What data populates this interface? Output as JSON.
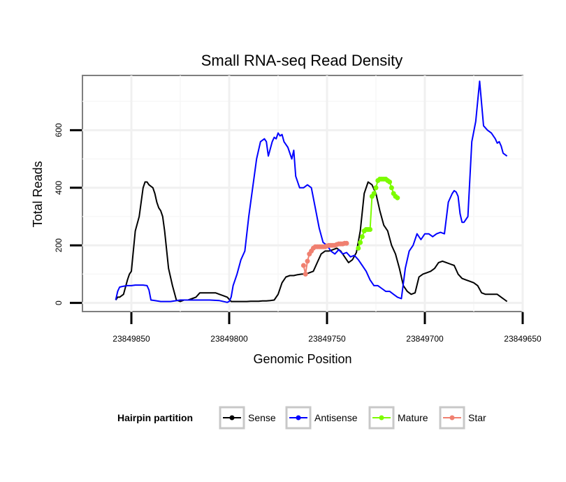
{
  "chart_data": {
    "type": "line",
    "title": "Small RNA-seq Read Density",
    "xlabel": "Genomic Position",
    "ylabel": "Total Reads",
    "xlim": [
      23849875,
      23849650
    ],
    "ylim": [
      -30,
      790
    ],
    "x_reversed": true,
    "grid": true,
    "x_ticks": [
      23849850,
      23849800,
      23849750,
      23849700,
      23849650
    ],
    "x_tick_labels": [
      "23849850",
      "23849800",
      "23849750",
      "23849700",
      "23849650"
    ],
    "y_ticks": [
      0,
      200,
      400,
      600
    ],
    "y_tick_labels": [
      "0",
      "200",
      "400",
      "600"
    ],
    "legend": {
      "title": "Hairpin partition",
      "position": "bottom",
      "entries": [
        {
          "label": "Sense",
          "color": "#000000"
        },
        {
          "label": "Antisense",
          "color": "#0000ff"
        },
        {
          "label": "Mature",
          "color": "#7cfc00"
        },
        {
          "label": "Star",
          "color": "#f08070"
        }
      ]
    },
    "series": [
      {
        "name": "Sense",
        "color": "#000000",
        "markers": false,
        "x": [
          23849858,
          23849857,
          23849856,
          23849854,
          23849852,
          23849851,
          23849850,
          23849848,
          23849846,
          23849845,
          23849844,
          23849843,
          23849842,
          23849841,
          23849840,
          23849839,
          23849838,
          23849837,
          23849836,
          23849835,
          23849834,
          23849833,
          23849831,
          23849829,
          23849827,
          23849825,
          23849823,
          23849821,
          23849819,
          23849817,
          23849815,
          23849813,
          23849811,
          23849809,
          23849807,
          23849805,
          23849803,
          23849801,
          23849799,
          23849797,
          23849795,
          23849793,
          23849791,
          23849789,
          23849787,
          23849785,
          23849783,
          23849781,
          23849779,
          23849777,
          23849775,
          23849773,
          23849771,
          23849769,
          23849767,
          23849765,
          23849763,
          23849761,
          23849759,
          23849757,
          23849755,
          23849753,
          23849751,
          23849749,
          23849747,
          23849745,
          23849743,
          23849741,
          23849739,
          23849737,
          23849735,
          23849733,
          23849731,
          23849729,
          23849727,
          23849725,
          23849723,
          23849721,
          23849719,
          23849717,
          23849715,
          23849713,
          23849711,
          23849709,
          23849707,
          23849705,
          23849703,
          23849701,
          23849699,
          23849697,
          23849695,
          23849693,
          23849691,
          23849689,
          23849687,
          23849685,
          23849683,
          23849681,
          23849679,
          23849677,
          23849675,
          23849673,
          23849671,
          23849669,
          23849667,
          23849665,
          23849663,
          23849661,
          23849659,
          23849658
        ],
        "y": [
          10,
          20,
          20,
          30,
          80,
          100,
          110,
          250,
          300,
          350,
          400,
          420,
          420,
          410,
          405,
          400,
          380,
          350,
          330,
          320,
          300,
          250,
          120,
          60,
          10,
          5,
          10,
          10,
          15,
          20,
          35,
          35,
          35,
          35,
          35,
          30,
          25,
          20,
          5,
          5,
          5,
          5,
          5,
          6,
          6,
          6,
          7,
          7,
          8,
          10,
          30,
          70,
          90,
          95,
          95,
          98,
          100,
          100,
          105,
          110,
          140,
          170,
          180,
          180,
          185,
          190,
          180,
          160,
          140,
          150,
          175,
          250,
          380,
          420,
          410,
          380,
          320,
          270,
          250,
          200,
          170,
          120,
          60,
          40,
          30,
          35,
          90,
          100,
          105,
          110,
          120,
          140,
          145,
          140,
          135,
          130,
          100,
          85,
          80,
          75,
          70,
          60,
          35,
          30,
          30,
          30,
          30,
          20,
          10,
          5
        ]
      },
      {
        "name": "Antisense",
        "color": "#0000ff",
        "markers": false,
        "x": [
          23849858,
          23849857,
          23849856,
          23849854,
          23849852,
          23849850,
          23849848,
          23849846,
          23849844,
          23849842,
          23849841,
          23849840,
          23849838,
          23849835,
          23849830,
          23849825,
          23849820,
          23849815,
          23849810,
          23849805,
          23849801,
          23849800,
          23849799,
          23849798,
          23849796,
          23849794,
          23849792,
          23849790,
          23849788,
          23849786,
          23849784,
          23849782,
          23849781,
          23849780,
          23849778,
          23849777,
          23849776,
          23849775,
          23849774,
          23849773,
          23849772,
          23849770,
          23849768,
          23849767,
          23849766,
          23849764,
          23849762,
          23849760,
          23849758,
          23849756,
          23849754,
          23849752,
          23849750,
          23849748,
          23849746,
          23849744,
          23849742,
          23849740,
          23849738,
          23849736,
          23849734,
          23849732,
          23849730,
          23849728,
          23849726,
          23849724,
          23849722,
          23849720,
          23849718,
          23849716,
          23849714,
          23849712,
          23849710,
          23849708,
          23849706,
          23849704,
          23849702,
          23849700,
          23849698,
          23849696,
          23849694,
          23849692,
          23849690,
          23849688,
          23849686,
          23849685,
          23849684,
          23849683,
          23849682,
          23849681,
          23849680,
          23849678,
          23849676,
          23849674,
          23849672,
          23849670,
          23849668,
          23849666,
          23849664,
          23849663,
          23849662,
          23849661,
          23849660,
          23849658
        ],
        "y": [
          10,
          40,
          55,
          58,
          60,
          60,
          62,
          62,
          62,
          60,
          45,
          10,
          8,
          5,
          5,
          10,
          10,
          10,
          10,
          8,
          2,
          5,
          20,
          60,
          100,
          150,
          180,
          300,
          400,
          500,
          560,
          570,
          560,
          510,
          560,
          575,
          570,
          590,
          580,
          585,
          560,
          540,
          500,
          530,
          440,
          400,
          400,
          410,
          400,
          330,
          260,
          210,
          200,
          180,
          170,
          185,
          170,
          175,
          160,
          165,
          150,
          130,
          110,
          80,
          60,
          60,
          50,
          40,
          40,
          30,
          20,
          15,
          120,
          180,
          200,
          240,
          220,
          240,
          240,
          230,
          240,
          245,
          240,
          350,
          380,
          390,
          385,
          370,
          310,
          280,
          280,
          300,
          560,
          630,
          770,
          615,
          600,
          590,
          570,
          555,
          560,
          545,
          520,
          510
        ]
      },
      {
        "name": "Mature",
        "color": "#7cfc00",
        "markers": true,
        "x": [
          23849734,
          23849733,
          23849732,
          23849731,
          23849730,
          23849729,
          23849728,
          23849727,
          23849726,
          23849725,
          23849724,
          23849723,
          23849722,
          23849721,
          23849720,
          23849719,
          23849718,
          23849717,
          23849716,
          23849715,
          23849714
        ],
        "y": [
          190,
          210,
          230,
          250,
          255,
          255,
          255,
          370,
          380,
          400,
          425,
          430,
          430,
          430,
          430,
          425,
          420,
          400,
          380,
          370,
          365
        ]
      },
      {
        "name": "Star",
        "color": "#f08070",
        "markers": true,
        "x": [
          23849762,
          23849761,
          23849760,
          23849759,
          23849758,
          23849757,
          23849756,
          23849755,
          23849754,
          23849753,
          23849752,
          23849751,
          23849750,
          23849749,
          23849748,
          23849747,
          23849746,
          23849745,
          23849744,
          23849743,
          23849742,
          23849741,
          23849740
        ],
        "y": [
          130,
          100,
          145,
          170,
          180,
          190,
          195,
          195,
          195,
          195,
          195,
          195,
          198,
          200,
          200,
          200,
          200,
          203,
          205,
          205,
          205,
          207,
          207
        ]
      }
    ]
  }
}
